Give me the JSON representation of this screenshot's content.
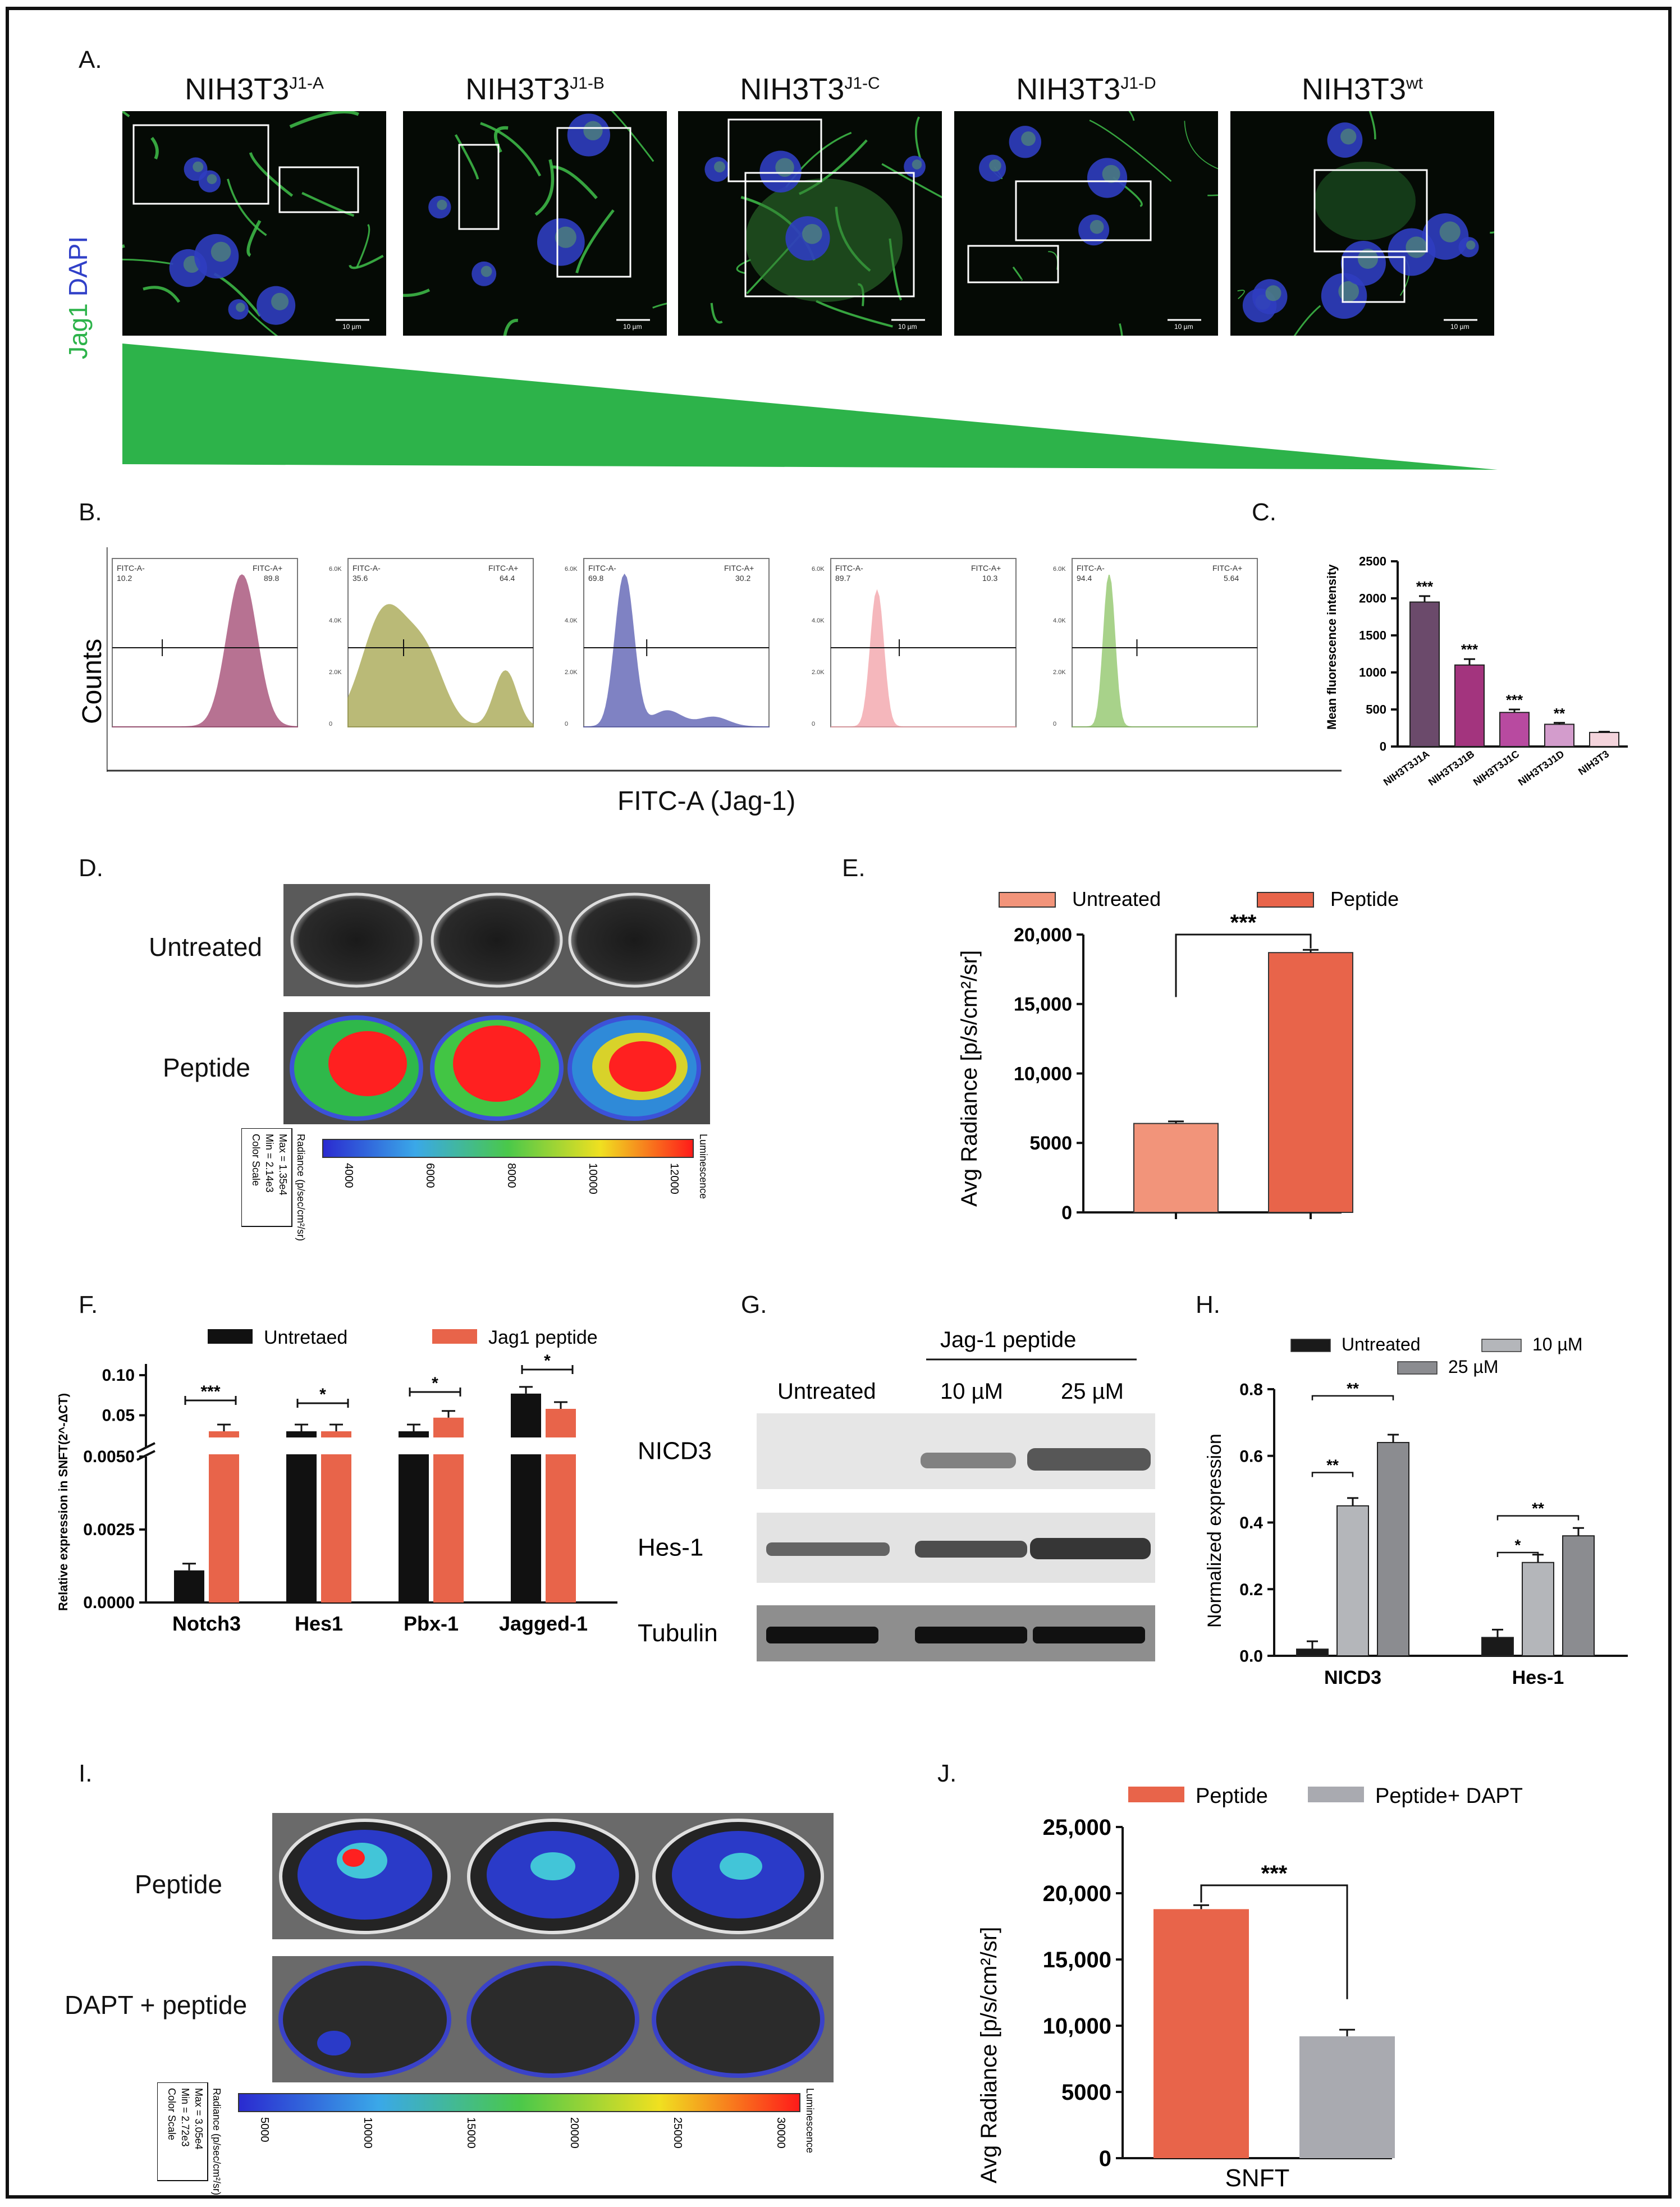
{
  "panel_letters": {
    "A": "A.",
    "B": "B.",
    "C": "C.",
    "D": "D.",
    "E": "E.",
    "F": "F.",
    "G": "G.",
    "H": "H.",
    "I": "I.",
    "J": "J."
  },
  "panelA": {
    "stain_label_jag1": "Jag1",
    "stain_label_dapi": "DAPI",
    "images": [
      {
        "base": "NIH3T3",
        "sup": "J1-A",
        "scale": "10 µm"
      },
      {
        "base": "NIH3T3",
        "sup": "J1-B",
        "scale": "10 µm"
      },
      {
        "base": "NIH3T3",
        "sup": "J1-C",
        "scale": "10 µm"
      },
      {
        "base": "NIH3T3",
        "sup": "J1-D",
        "scale": "10 µm"
      },
      {
        "base": "NIH3T3",
        "sup": "wt",
        "scale": "10 µm"
      }
    ],
    "gradient_color": "#2db34a"
  },
  "panelB": {
    "y_label": "Counts",
    "x_label": "FITC-A (Jag-1)",
    "histograms": [
      {
        "neg_label": "FITC-A-",
        "neg": "10.2",
        "pos_label": "FITC-A+",
        "pos": "89.8",
        "color": "#a0446e"
      },
      {
        "neg_label": "FITC-A-",
        "neg": "35.6",
        "pos_label": "FITC-A+",
        "pos": "64.4",
        "color": "#a3a34a"
      },
      {
        "neg_label": "FITC-A-",
        "neg": "69.8",
        "pos_label": "FITC-A+",
        "pos": "30.2",
        "color": "#5559b0"
      },
      {
        "neg_label": "FITC-A-",
        "neg": "89.7",
        "pos_label": "FITC-A+",
        "pos": "10.3",
        "color": "#f2a0a6"
      },
      {
        "neg_label": "FITC-A-",
        "neg": "94.4",
        "pos_label": "FITC-A+",
        "pos": "5.64",
        "color": "#8cc464"
      }
    ],
    "y_ticks": [
      "6.0K",
      "4.0K",
      "2.0K",
      "0"
    ]
  },
  "panelD": {
    "row1": "Untreated",
    "row2": "Peptide",
    "scale_box": [
      "Color Scale",
      "Min = 2.14e3",
      "Max = 1.35e4"
    ],
    "radiance_label": "Radiance (p/sec/cm²/sr)",
    "luminescence": "Luminescence",
    "ticks": [
      "4000",
      "6000",
      "8000",
      "10000",
      "12000"
    ]
  },
  "panelG": {
    "jag_label": "Jag-1 peptide",
    "lanes": [
      "Untreated",
      "10 µM",
      "25 µM"
    ],
    "rows": [
      "NICD3",
      "Hes-1",
      "Tubulin"
    ]
  },
  "panelI": {
    "row1": "Peptide",
    "row2": "DAPT + peptide",
    "scale_box": [
      "Color Scale",
      "Min = 2.72e3",
      "Max = 3.05e4"
    ],
    "radiance_label": "Radiance (p/sec/cm²/sr)",
    "luminescence": "Luminescence",
    "ticks": [
      "5000",
      "10000",
      "15000",
      "20000",
      "25000",
      "30000"
    ]
  },
  "chart_data": [
    {
      "id": "C",
      "type": "bar",
      "ylabel": "Mean fluorescence intensity",
      "categories": [
        "NIH3T3J1A",
        "NIH3T3J1B",
        "NIH3T3J1C",
        "NIH3T3J1D",
        "NIH3T3"
      ],
      "values": [
        1950,
        1100,
        460,
        300,
        190
      ],
      "errors": [
        80,
        80,
        40,
        20,
        10
      ],
      "colors": [
        "#6b4a6b",
        "#a3347e",
        "#b84aa0",
        "#d39ccc",
        "#f4d4dc"
      ],
      "significance": [
        "***",
        "***",
        "***",
        "**",
        ""
      ],
      "ylim": [
        0,
        2500
      ],
      "yticks": [
        "0",
        "500",
        "1000",
        "1500",
        "2000",
        "2500"
      ]
    },
    {
      "id": "E",
      "type": "bar",
      "ylabel": "Avg Radiance [p/s/cm²/sr]",
      "series": [
        {
          "name": "Untreated",
          "value": 6400,
          "error": 150,
          "color": "#f2947a"
        },
        {
          "name": "Peptide",
          "value": 18700,
          "error": 200,
          "color": "#e8644a"
        }
      ],
      "ylim": [
        0,
        20000
      ],
      "yticks": [
        "0",
        "5000",
        "10,000",
        "15,000",
        "20,000"
      ],
      "significance": "***"
    },
    {
      "id": "F",
      "type": "bar",
      "ylabel": "Relative expression in SNFT(2^-ΔCT)",
      "categories": [
        "Notch3",
        "Hes1",
        "Pbx-1",
        "Jagged-1"
      ],
      "series": [
        {
          "name": "Untretaed",
          "color": "#111111",
          "values": [
            0.0011,
            0.015,
            0.017,
            0.077
          ]
        },
        {
          "name": "Jag1 peptide",
          "color": "#e8644a",
          "values": [
            0.012,
            0.02,
            0.047,
            0.058
          ]
        }
      ],
      "upper_ticks": [
        "0.05",
        "0.10"
      ],
      "lower_ticks": [
        "0.0000",
        "0.0025",
        "0.0050"
      ],
      "significance": [
        "***",
        "*",
        "*",
        "*"
      ]
    },
    {
      "id": "H",
      "type": "bar",
      "ylabel": "Normalized expression",
      "categories": [
        "NICD3",
        "Hes-1"
      ],
      "series": [
        {
          "name": "Untreated",
          "color": "#1a1a1a",
          "values": [
            0.02,
            0.055
          ]
        },
        {
          "name": "10 µM",
          "color": "#b4b6ba",
          "values": [
            0.45,
            0.28
          ]
        },
        {
          "name": "25 µM",
          "color": "#8b8c90",
          "values": [
            0.64,
            0.36
          ]
        }
      ],
      "ylim": [
        0,
        0.8
      ],
      "yticks": [
        "0.0",
        "0.2",
        "0.4",
        "0.6",
        "0.8"
      ],
      "significance": [
        [
          "**",
          "**"
        ],
        [
          "*",
          "**"
        ]
      ]
    },
    {
      "id": "J",
      "type": "bar",
      "ylabel": "Avg Radiance [p/s/cm²/sr]",
      "xlabel": "SNFT",
      "series": [
        {
          "name": "Peptide",
          "value": 18800,
          "error": 300,
          "color": "#e8644a"
        },
        {
          "name": "Peptide+ DAPT",
          "value": 9200,
          "error": 500,
          "color": "#a9aab0"
        }
      ],
      "ylim": [
        0,
        25000
      ],
      "yticks": [
        "0",
        "5000",
        "10,000",
        "15,000",
        "20,000",
        "25,000"
      ],
      "significance": "***"
    }
  ]
}
